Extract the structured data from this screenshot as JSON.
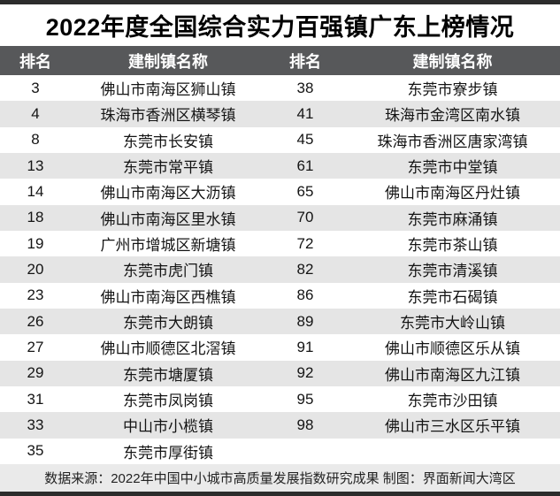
{
  "title": "2022年度全国综合实力百强镇广东上榜情况",
  "table": {
    "headers": [
      "排名",
      "建制镇名称",
      "排名",
      "建制镇名称"
    ],
    "rows": [
      {
        "rank1": "3",
        "town1": "佛山市南海区狮山镇",
        "rank2": "38",
        "town2": "东莞市寮步镇"
      },
      {
        "rank1": "4",
        "town1": "珠海市香洲区横琴镇",
        "rank2": "41",
        "town2": "珠海市金湾区南水镇"
      },
      {
        "rank1": "8",
        "town1": "东莞市长安镇",
        "rank2": "45",
        "town2": "珠海市香洲区唐家湾镇"
      },
      {
        "rank1": "13",
        "town1": "东莞市常平镇",
        "rank2": "61",
        "town2": "东莞市中堂镇"
      },
      {
        "rank1": "14",
        "town1": "佛山市南海区大沥镇",
        "rank2": "65",
        "town2": "佛山市南海区丹灶镇"
      },
      {
        "rank1": "18",
        "town1": "佛山市南海区里水镇",
        "rank2": "70",
        "town2": "东莞市麻涌镇"
      },
      {
        "rank1": "19",
        "town1": "广州市增城区新塘镇",
        "rank2": "72",
        "town2": "东莞市茶山镇"
      },
      {
        "rank1": "20",
        "town1": "东莞市虎门镇",
        "rank2": "82",
        "town2": "东莞市清溪镇"
      },
      {
        "rank1": "23",
        "town1": "佛山市南海区西樵镇",
        "rank2": "86",
        "town2": "东莞市石碣镇"
      },
      {
        "rank1": "26",
        "town1": "东莞市大朗镇",
        "rank2": "89",
        "town2": "东莞市大岭山镇"
      },
      {
        "rank1": "27",
        "town1": "佛山市顺德区北滘镇",
        "rank2": "91",
        "town2": "佛山市顺德区乐从镇"
      },
      {
        "rank1": "29",
        "town1": "东莞市塘厦镇",
        "rank2": "92",
        "town2": "佛山市南海区九江镇"
      },
      {
        "rank1": "31",
        "town1": "东莞市凤岗镇",
        "rank2": "95",
        "town2": "东莞市沙田镇"
      },
      {
        "rank1": "33",
        "town1": "中山市小榄镇",
        "rank2": "98",
        "town2": "佛山市三水区乐平镇"
      },
      {
        "rank1": "35",
        "town1": "东莞市厚街镇",
        "rank2": "",
        "town2": ""
      }
    ]
  },
  "footer": "数据来源：2022年中国中小城市高质量发展指数研究成果 制图：界面新闻大湾区",
  "colors": {
    "header_bg": "#57585a",
    "header_text": "#ffffff",
    "stripe_bg": "#e5e5e5",
    "footer_bg": "#eaeaea",
    "frame_bar": "#2c2c2c",
    "title_text": "#000000",
    "row_text": "#141414"
  }
}
